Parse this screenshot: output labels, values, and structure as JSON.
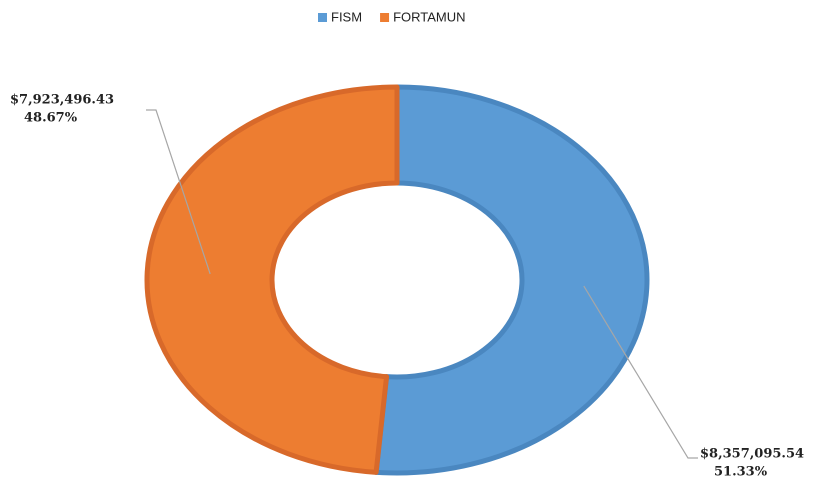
{
  "chart_data": {
    "type": "donut",
    "categories": [
      "FISM",
      "FORTAMUN"
    ],
    "values": [
      8357095.54,
      7923496.43
    ],
    "value_labels": [
      "$8,357,095.54",
      "$7,923,496.43"
    ],
    "percentages": [
      51.33,
      48.67
    ],
    "percent_labels": [
      "51.33%",
      "48.67%"
    ],
    "colors": [
      "#5b9bd5",
      "#ed7d31"
    ],
    "legend": "top"
  }
}
